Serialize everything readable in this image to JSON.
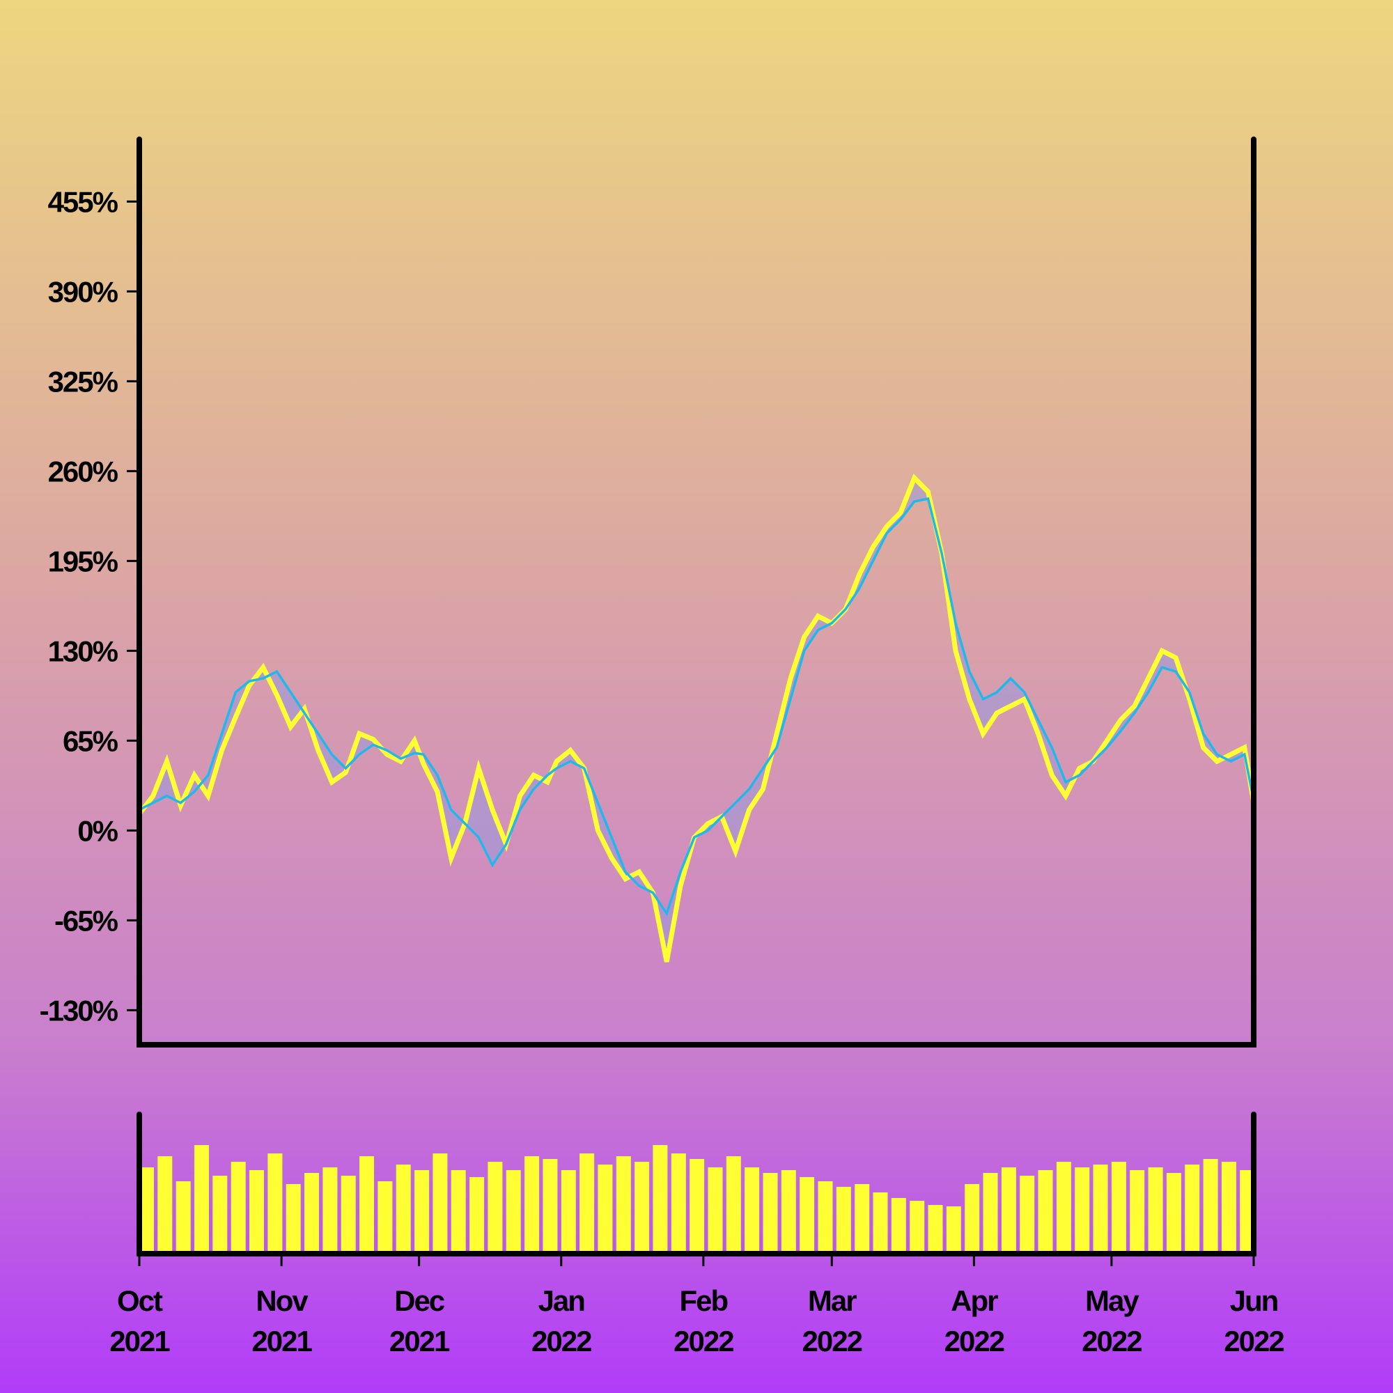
{
  "chart_data": {
    "type": "line",
    "title": "",
    "xlabel": "",
    "ylabel": "",
    "ylim": [
      -155,
      500
    ],
    "y_ticks": [
      -130,
      -65,
      0,
      65,
      130,
      195,
      260,
      325,
      390,
      455
    ],
    "y_tick_labels": [
      "-130%",
      "-65%",
      "0%",
      "65%",
      "130%",
      "195%",
      "260%",
      "325%",
      "390%",
      "455%"
    ],
    "x_range": [
      "2021-10-01",
      "2022-06-01"
    ],
    "x_ticks": [
      {
        "date": "2021-10-01",
        "month": "Oct",
        "year": "2021"
      },
      {
        "date": "2021-11-01",
        "month": "Nov",
        "year": "2021"
      },
      {
        "date": "2021-12-01",
        "month": "Dec",
        "year": "2021"
      },
      {
        "date": "2022-01-01",
        "month": "Jan",
        "year": "2022"
      },
      {
        "date": "2022-02-01",
        "month": "Feb",
        "year": "2022"
      },
      {
        "date": "2022-03-01",
        "month": "Mar",
        "year": "2022"
      },
      {
        "date": "2022-04-01",
        "month": "Apr",
        "year": "2022"
      },
      {
        "date": "2022-05-01",
        "month": "May",
        "year": "2022"
      },
      {
        "date": "2022-06-01",
        "month": "Jun",
        "year": "2022"
      }
    ],
    "grid": false,
    "legend": "none",
    "series": [
      {
        "values": [
          [
            "2021-10-01",
            12
          ],
          [
            "2021-10-04",
            25
          ],
          [
            "2021-10-07",
            50
          ],
          [
            "2021-10-10",
            18
          ],
          [
            "2021-10-13",
            40
          ],
          [
            "2021-10-16",
            25
          ],
          [
            "2021-10-19",
            58
          ],
          [
            "2021-10-22",
            82
          ],
          [
            "2021-10-25",
            105
          ],
          [
            "2021-10-28",
            118
          ],
          [
            "2021-10-31",
            98
          ],
          [
            "2021-11-03",
            75
          ],
          [
            "2021-11-06",
            88
          ],
          [
            "2021-11-09",
            58
          ],
          [
            "2021-11-12",
            35
          ],
          [
            "2021-11-15",
            42
          ],
          [
            "2021-11-18",
            70
          ],
          [
            "2021-11-21",
            66
          ],
          [
            "2021-11-24",
            55
          ],
          [
            "2021-11-27",
            50
          ],
          [
            "2021-11-30",
            65
          ],
          [
            "2021-12-02",
            48
          ],
          [
            "2021-12-05",
            28
          ],
          [
            "2021-12-08",
            -20
          ],
          [
            "2021-12-11",
            5
          ],
          [
            "2021-12-14",
            45
          ],
          [
            "2021-12-17",
            15
          ],
          [
            "2021-12-20",
            -10
          ],
          [
            "2021-12-23",
            25
          ],
          [
            "2021-12-26",
            40
          ],
          [
            "2021-12-29",
            35
          ],
          [
            "2021-12-31",
            50
          ],
          [
            "2022-01-03",
            58
          ],
          [
            "2022-01-06",
            45
          ],
          [
            "2022-01-09",
            0
          ],
          [
            "2022-01-12",
            -20
          ],
          [
            "2022-01-15",
            -35
          ],
          [
            "2022-01-18",
            -30
          ],
          [
            "2022-01-21",
            -45
          ],
          [
            "2022-01-24",
            -95
          ],
          [
            "2022-01-27",
            -40
          ],
          [
            "2022-01-30",
            -5
          ],
          [
            "2022-02-02",
            5
          ],
          [
            "2022-02-05",
            10
          ],
          [
            "2022-02-08",
            -15
          ],
          [
            "2022-02-11",
            15
          ],
          [
            "2022-02-14",
            30
          ],
          [
            "2022-02-17",
            70
          ],
          [
            "2022-02-20",
            110
          ],
          [
            "2022-02-23",
            140
          ],
          [
            "2022-02-26",
            155
          ],
          [
            "2022-03-01",
            150
          ],
          [
            "2022-03-04",
            160
          ],
          [
            "2022-03-07",
            185
          ],
          [
            "2022-03-10",
            205
          ],
          [
            "2022-03-13",
            220
          ],
          [
            "2022-03-16",
            230
          ],
          [
            "2022-03-19",
            255
          ],
          [
            "2022-03-22",
            245
          ],
          [
            "2022-03-25",
            200
          ],
          [
            "2022-03-28",
            130
          ],
          [
            "2022-03-31",
            95
          ],
          [
            "2022-04-03",
            70
          ],
          [
            "2022-04-06",
            85
          ],
          [
            "2022-04-09",
            90
          ],
          [
            "2022-04-12",
            95
          ],
          [
            "2022-04-15",
            70
          ],
          [
            "2022-04-18",
            40
          ],
          [
            "2022-04-21",
            25
          ],
          [
            "2022-04-24",
            45
          ],
          [
            "2022-04-27",
            50
          ],
          [
            "2022-04-30",
            65
          ],
          [
            "2022-05-03",
            80
          ],
          [
            "2022-05-06",
            90
          ],
          [
            "2022-05-09",
            110
          ],
          [
            "2022-05-12",
            130
          ],
          [
            "2022-05-15",
            125
          ],
          [
            "2022-05-18",
            95
          ],
          [
            "2022-05-21",
            60
          ],
          [
            "2022-05-24",
            50
          ],
          [
            "2022-05-27",
            55
          ],
          [
            "2022-05-30",
            60
          ],
          [
            "2022-06-01",
            20
          ]
        ]
      },
      {
        "values": [
          [
            "2021-10-01",
            15
          ],
          [
            "2021-10-04",
            20
          ],
          [
            "2021-10-07",
            25
          ],
          [
            "2021-10-10",
            20
          ],
          [
            "2021-10-13",
            28
          ],
          [
            "2021-10-16",
            40
          ],
          [
            "2021-10-19",
            70
          ],
          [
            "2021-10-22",
            100
          ],
          [
            "2021-10-25",
            108
          ],
          [
            "2021-10-28",
            110
          ],
          [
            "2021-10-31",
            115
          ],
          [
            "2021-11-03",
            100
          ],
          [
            "2021-11-06",
            85
          ],
          [
            "2021-11-09",
            70
          ],
          [
            "2021-11-12",
            55
          ],
          [
            "2021-11-15",
            45
          ],
          [
            "2021-11-18",
            55
          ],
          [
            "2021-11-21",
            62
          ],
          [
            "2021-11-24",
            58
          ],
          [
            "2021-11-27",
            52
          ],
          [
            "2021-11-30",
            56
          ],
          [
            "2021-12-02",
            55
          ],
          [
            "2021-12-05",
            40
          ],
          [
            "2021-12-08",
            15
          ],
          [
            "2021-12-11",
            5
          ],
          [
            "2021-12-14",
            -5
          ],
          [
            "2021-12-17",
            -25
          ],
          [
            "2021-12-20",
            -10
          ],
          [
            "2021-12-23",
            15
          ],
          [
            "2021-12-26",
            30
          ],
          [
            "2021-12-29",
            40
          ],
          [
            "2021-12-31",
            45
          ],
          [
            "2022-01-03",
            50
          ],
          [
            "2022-01-06",
            45
          ],
          [
            "2022-01-09",
            20
          ],
          [
            "2022-01-12",
            -5
          ],
          [
            "2022-01-15",
            -30
          ],
          [
            "2022-01-18",
            -40
          ],
          [
            "2022-01-21",
            -45
          ],
          [
            "2022-01-24",
            -60
          ],
          [
            "2022-01-27",
            -30
          ],
          [
            "2022-01-30",
            -5
          ],
          [
            "2022-02-02",
            0
          ],
          [
            "2022-02-05",
            10
          ],
          [
            "2022-02-08",
            20
          ],
          [
            "2022-02-11",
            30
          ],
          [
            "2022-02-14",
            45
          ],
          [
            "2022-02-17",
            60
          ],
          [
            "2022-02-20",
            95
          ],
          [
            "2022-02-23",
            130
          ],
          [
            "2022-02-26",
            145
          ],
          [
            "2022-03-01",
            150
          ],
          [
            "2022-03-04",
            160
          ],
          [
            "2022-03-07",
            175
          ],
          [
            "2022-03-10",
            195
          ],
          [
            "2022-03-13",
            215
          ],
          [
            "2022-03-16",
            225
          ],
          [
            "2022-03-19",
            238
          ],
          [
            "2022-03-22",
            240
          ],
          [
            "2022-03-25",
            200
          ],
          [
            "2022-03-28",
            150
          ],
          [
            "2022-03-31",
            115
          ],
          [
            "2022-04-03",
            95
          ],
          [
            "2022-04-06",
            100
          ],
          [
            "2022-04-09",
            110
          ],
          [
            "2022-04-12",
            100
          ],
          [
            "2022-04-15",
            80
          ],
          [
            "2022-04-18",
            60
          ],
          [
            "2022-04-21",
            35
          ],
          [
            "2022-04-24",
            40
          ],
          [
            "2022-04-27",
            50
          ],
          [
            "2022-04-30",
            60
          ],
          [
            "2022-05-03",
            72
          ],
          [
            "2022-05-06",
            85
          ],
          [
            "2022-05-09",
            100
          ],
          [
            "2022-05-12",
            118
          ],
          [
            "2022-05-15",
            115
          ],
          [
            "2022-05-18",
            100
          ],
          [
            "2022-05-21",
            70
          ],
          [
            "2022-05-24",
            55
          ],
          [
            "2022-05-27",
            50
          ],
          [
            "2022-05-30",
            55
          ],
          [
            "2022-06-01",
            22
          ]
        ]
      }
    ],
    "volume": [
      [
        "2021-10-01",
        0.62
      ],
      [
        "2021-10-05",
        0.7
      ],
      [
        "2021-10-09",
        0.52
      ],
      [
        "2021-10-13",
        0.78
      ],
      [
        "2021-10-17",
        0.56
      ],
      [
        "2021-10-21",
        0.66
      ],
      [
        "2021-10-25",
        0.6
      ],
      [
        "2021-10-29",
        0.72
      ],
      [
        "2021-11-02",
        0.5
      ],
      [
        "2021-11-06",
        0.58
      ],
      [
        "2021-11-10",
        0.62
      ],
      [
        "2021-11-14",
        0.56
      ],
      [
        "2021-11-18",
        0.7
      ],
      [
        "2021-11-22",
        0.52
      ],
      [
        "2021-11-26",
        0.64
      ],
      [
        "2021-11-30",
        0.6
      ],
      [
        "2021-12-04",
        0.72
      ],
      [
        "2021-12-08",
        0.6
      ],
      [
        "2021-12-12",
        0.55
      ],
      [
        "2021-12-16",
        0.66
      ],
      [
        "2021-12-20",
        0.6
      ],
      [
        "2021-12-24",
        0.7
      ],
      [
        "2021-12-28",
        0.68
      ],
      [
        "2022-01-01",
        0.6
      ],
      [
        "2022-01-05",
        0.72
      ],
      [
        "2022-01-09",
        0.64
      ],
      [
        "2022-01-13",
        0.7
      ],
      [
        "2022-01-17",
        0.66
      ],
      [
        "2022-01-21",
        0.78
      ],
      [
        "2022-01-25",
        0.72
      ],
      [
        "2022-01-29",
        0.68
      ],
      [
        "2022-02-02",
        0.62
      ],
      [
        "2022-02-06",
        0.7
      ],
      [
        "2022-02-10",
        0.62
      ],
      [
        "2022-02-14",
        0.58
      ],
      [
        "2022-02-18",
        0.6
      ],
      [
        "2022-02-22",
        0.55
      ],
      [
        "2022-02-26",
        0.52
      ],
      [
        "2022-03-02",
        0.48
      ],
      [
        "2022-03-06",
        0.5
      ],
      [
        "2022-03-10",
        0.44
      ],
      [
        "2022-03-14",
        0.4
      ],
      [
        "2022-03-18",
        0.38
      ],
      [
        "2022-03-22",
        0.35
      ],
      [
        "2022-03-26",
        0.34
      ],
      [
        "2022-03-30",
        0.5
      ],
      [
        "2022-04-03",
        0.58
      ],
      [
        "2022-04-07",
        0.62
      ],
      [
        "2022-04-11",
        0.56
      ],
      [
        "2022-04-15",
        0.6
      ],
      [
        "2022-04-19",
        0.66
      ],
      [
        "2022-04-23",
        0.62
      ],
      [
        "2022-04-27",
        0.64
      ],
      [
        "2022-05-01",
        0.66
      ],
      [
        "2022-05-05",
        0.6
      ],
      [
        "2022-05-09",
        0.62
      ],
      [
        "2022-05-13",
        0.58
      ],
      [
        "2022-05-17",
        0.64
      ],
      [
        "2022-05-21",
        0.68
      ],
      [
        "2022-05-25",
        0.66
      ],
      [
        "2022-05-29",
        0.6
      ]
    ],
    "colors": {
      "series_1": "#ffff33",
      "series_2": "#1fb8ea",
      "band_fill": "#9999dd",
      "volume": "#ffff33",
      "axis": "#000000",
      "background_top": "#edd67f",
      "background_bottom": "#b13cf9"
    }
  }
}
